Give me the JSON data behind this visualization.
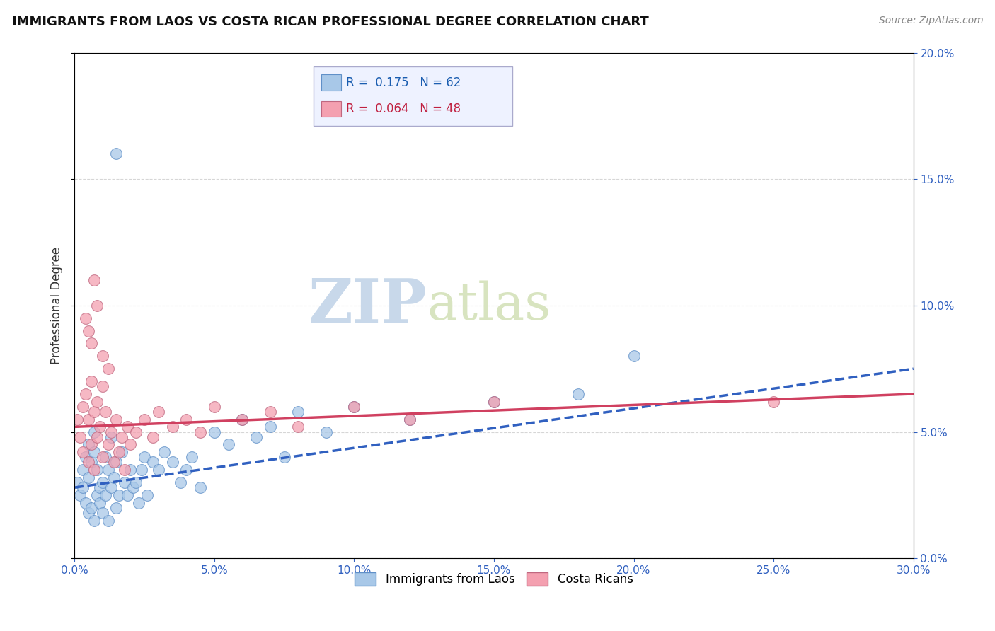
{
  "title": "IMMIGRANTS FROM LAOS VS COSTA RICAN PROFESSIONAL DEGREE CORRELATION CHART",
  "source": "Source: ZipAtlas.com",
  "ylabel": "Professional Degree",
  "r_blue": 0.175,
  "n_blue": 62,
  "r_pink": 0.064,
  "n_pink": 48,
  "blue_color": "#a8c8e8",
  "pink_color": "#f4a0b0",
  "blue_line_color": "#3060c0",
  "pink_line_color": "#d04060",
  "blue_line_dash": true,
  "pink_line_solid": true,
  "watermark_zip": "ZIP",
  "watermark_atlas": "atlas",
  "xlim": [
    0.0,
    0.3
  ],
  "ylim": [
    0.0,
    0.2
  ],
  "blue_scatter_x": [
    0.001,
    0.002,
    0.003,
    0.003,
    0.004,
    0.004,
    0.005,
    0.005,
    0.005,
    0.006,
    0.006,
    0.007,
    0.007,
    0.007,
    0.008,
    0.008,
    0.009,
    0.009,
    0.01,
    0.01,
    0.011,
    0.011,
    0.012,
    0.012,
    0.013,
    0.013,
    0.014,
    0.015,
    0.015,
    0.016,
    0.017,
    0.018,
    0.019,
    0.02,
    0.021,
    0.022,
    0.023,
    0.024,
    0.025,
    0.026,
    0.028,
    0.03,
    0.032,
    0.035,
    0.038,
    0.04,
    0.042,
    0.045,
    0.05,
    0.055,
    0.06,
    0.065,
    0.07,
    0.075,
    0.08,
    0.09,
    0.1,
    0.12,
    0.15,
    0.18,
    0.015,
    0.2
  ],
  "blue_scatter_y": [
    0.03,
    0.025,
    0.028,
    0.035,
    0.022,
    0.04,
    0.018,
    0.032,
    0.045,
    0.02,
    0.038,
    0.015,
    0.042,
    0.05,
    0.025,
    0.035,
    0.028,
    0.022,
    0.03,
    0.018,
    0.04,
    0.025,
    0.035,
    0.015,
    0.048,
    0.028,
    0.032,
    0.02,
    0.038,
    0.025,
    0.042,
    0.03,
    0.025,
    0.035,
    0.028,
    0.03,
    0.022,
    0.035,
    0.04,
    0.025,
    0.038,
    0.035,
    0.042,
    0.038,
    0.03,
    0.035,
    0.04,
    0.028,
    0.05,
    0.045,
    0.055,
    0.048,
    0.052,
    0.04,
    0.058,
    0.05,
    0.06,
    0.055,
    0.062,
    0.065,
    0.16,
    0.08
  ],
  "pink_scatter_x": [
    0.001,
    0.002,
    0.003,
    0.003,
    0.004,
    0.005,
    0.005,
    0.006,
    0.006,
    0.007,
    0.007,
    0.008,
    0.008,
    0.009,
    0.01,
    0.01,
    0.011,
    0.012,
    0.013,
    0.014,
    0.015,
    0.016,
    0.017,
    0.018,
    0.019,
    0.02,
    0.022,
    0.025,
    0.028,
    0.03,
    0.035,
    0.04,
    0.045,
    0.05,
    0.06,
    0.07,
    0.08,
    0.1,
    0.12,
    0.15,
    0.004,
    0.005,
    0.006,
    0.007,
    0.008,
    0.01,
    0.012,
    0.25
  ],
  "pink_scatter_y": [
    0.055,
    0.048,
    0.06,
    0.042,
    0.065,
    0.055,
    0.038,
    0.07,
    0.045,
    0.058,
    0.035,
    0.062,
    0.048,
    0.052,
    0.04,
    0.068,
    0.058,
    0.045,
    0.05,
    0.038,
    0.055,
    0.042,
    0.048,
    0.035,
    0.052,
    0.045,
    0.05,
    0.055,
    0.048,
    0.058,
    0.052,
    0.055,
    0.05,
    0.06,
    0.055,
    0.058,
    0.052,
    0.06,
    0.055,
    0.062,
    0.095,
    0.09,
    0.085,
    0.11,
    0.1,
    0.08,
    0.075,
    0.062
  ]
}
